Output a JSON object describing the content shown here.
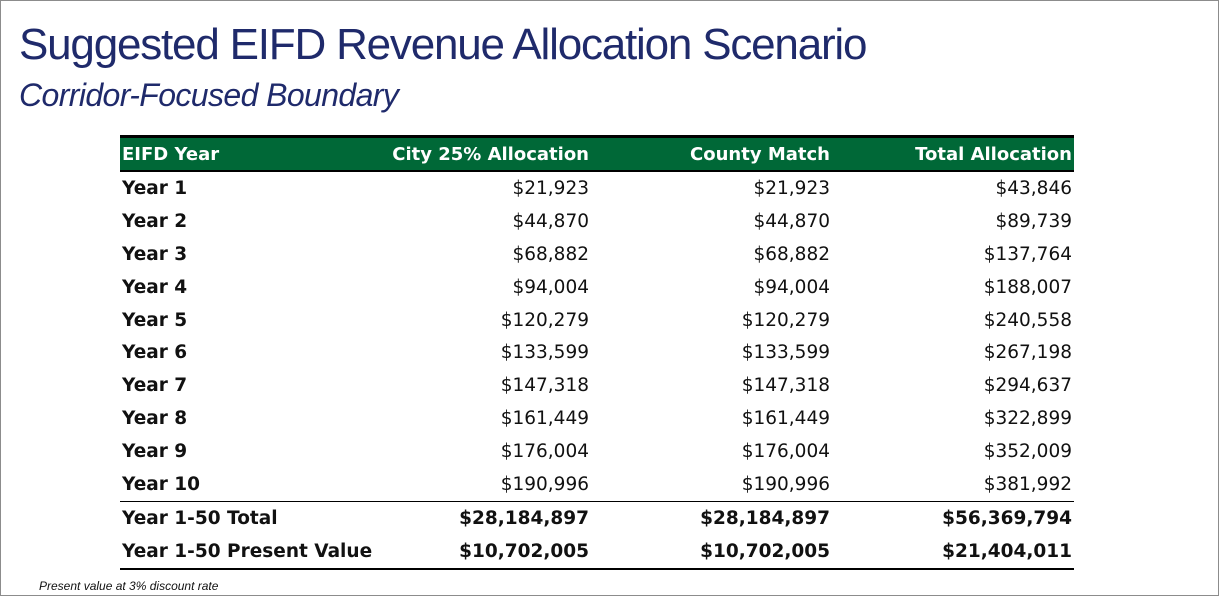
{
  "slide": {
    "title": "Suggested EIFD Revenue Allocation Scenario",
    "subtitle": "Corridor-Focused Boundary",
    "footnote": "Present value at 3% discount rate"
  },
  "table": {
    "header_color": "#006837",
    "headers": [
      "EIFD Year",
      "City 25% Allocation",
      "County Match",
      "Total Allocation"
    ],
    "rows": [
      [
        "Year 1",
        "$21,923",
        "$21,923",
        "$43,846"
      ],
      [
        "Year 2",
        "$44,870",
        "$44,870",
        "$89,739"
      ],
      [
        "Year 3",
        "$68,882",
        "$68,882",
        "$137,764"
      ],
      [
        "Year 4",
        "$94,004",
        "$94,004",
        "$188,007"
      ],
      [
        "Year 5",
        "$120,279",
        "$120,279",
        "$240,558"
      ],
      [
        "Year 6",
        "$133,599",
        "$133,599",
        "$267,198"
      ],
      [
        "Year 7",
        "$147,318",
        "$147,318",
        "$294,637"
      ],
      [
        "Year 8",
        "$161,449",
        "$161,449",
        "$322,899"
      ],
      [
        "Year 9",
        "$176,004",
        "$176,004",
        "$352,009"
      ],
      [
        "Year 10",
        "$190,996",
        "$190,996",
        "$381,992"
      ]
    ],
    "total": [
      "Year 1-50 Total",
      "$28,184,897",
      "$28,184,897",
      "$56,369,794"
    ],
    "present_value": [
      "Year 1-50 Present Value",
      "$10,702,005",
      "$10,702,005",
      "$21,404,011"
    ]
  }
}
